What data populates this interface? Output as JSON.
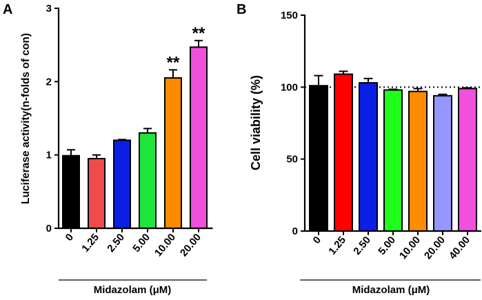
{
  "chart_data": [
    {
      "panel": "A",
      "type": "bar",
      "title": "",
      "xlabel": "Midazolam (μM)",
      "ylabel": "Luciferase activity(n-folds of con)",
      "categories": [
        "0",
        "1.25",
        "2.50",
        "5.00",
        "10.00",
        "20.00"
      ],
      "values": [
        0.99,
        0.95,
        1.2,
        1.3,
        2.05,
        2.47
      ],
      "errors": [
        0.08,
        0.05,
        0.01,
        0.06,
        0.11,
        0.09
      ],
      "colors": [
        "#000000",
        "#f04b4b",
        "#0a1ee6",
        "#1ee63c",
        "#ff8c00",
        "#f050dc"
      ],
      "significance": [
        "",
        "",
        "",
        "",
        "**",
        "**"
      ],
      "ylim": [
        0,
        3
      ],
      "yticks": [
        "0",
        "1",
        "2",
        "3"
      ]
    },
    {
      "panel": "B",
      "type": "bar",
      "title": "",
      "xlabel": "Midazolam (μM)",
      "ylabel": "Cell viability (%)",
      "categories": [
        "0",
        "1.25",
        "2.50",
        "5.00",
        "10.00",
        "20.00",
        "40.00"
      ],
      "values": [
        101,
        109,
        103,
        98,
        97,
        94,
        99
      ],
      "errors": [
        7,
        2,
        3,
        0.5,
        2,
        1,
        0.5
      ],
      "colors": [
        "#000000",
        "#ff0000",
        "#0a1ee6",
        "#1eff1e",
        "#ff8c00",
        "#9696ff",
        "#f050dc"
      ],
      "reference_line": 100,
      "ylim": [
        0,
        150
      ],
      "yticks": [
        "0",
        "50",
        "100",
        "150"
      ]
    }
  ]
}
